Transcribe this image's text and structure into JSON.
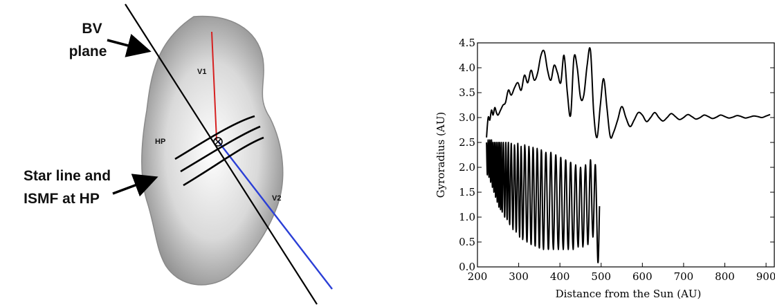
{
  "figure_left": {
    "callouts": {
      "bv_plane_line1": "BV",
      "bv_plane_line2": "plane",
      "star_line1": "Star line and",
      "star_line2": "ISMF at HP"
    },
    "labels": {
      "v1": "V1",
      "v2": "V2",
      "hp": "HP"
    },
    "colors": {
      "v1_vector": "#d62020",
      "v2_vector": "#2b3fd6",
      "bv_plane": "#000000",
      "heliopause_fill": "#bdbdbd"
    }
  },
  "chart_data": {
    "type": "line",
    "title": "",
    "xlabel": "Distance from the Sun (AU)",
    "ylabel": "Gyroradius (AU)",
    "xlim": [
      200,
      920
    ],
    "ylim": [
      0.0,
      4.5
    ],
    "xticks": [
      200,
      300,
      400,
      500,
      600,
      700,
      800,
      900
    ],
    "yticks": [
      0.0,
      0.5,
      1.0,
      1.5,
      2.0,
      2.5,
      3.0,
      3.5,
      4.0,
      4.5
    ],
    "xtick_labels": [
      "200",
      "300",
      "400",
      "500",
      "600",
      "700",
      "800",
      "900"
    ],
    "ytick_labels": [
      "0.0",
      "0.5",
      "1.0",
      "1.5",
      "2.0",
      "2.5",
      "3.0",
      "3.5",
      "4.0",
      "4.5"
    ],
    "grid": false,
    "series": [
      {
        "color": "#000000",
        "x": [
          222,
          226,
          230,
          234,
          238,
          242,
          246,
          250,
          256,
          262,
          268,
          275,
          282,
          290,
          298,
          306,
          314,
          322,
          330,
          338,
          346,
          354,
          362,
          370,
          378,
          386,
          394,
          402,
          410,
          418,
          426,
          434,
          442,
          450,
          458,
          466,
          474,
          482,
          490,
          498,
          506,
          514,
          522,
          530,
          540,
          550,
          560,
          570,
          580,
          590,
          600,
          610,
          620,
          630,
          640,
          650,
          660,
          670,
          680,
          690,
          700,
          710,
          720,
          730,
          740,
          750,
          760,
          770,
          780,
          790,
          800,
          810,
          820,
          830,
          840,
          850,
          860,
          870,
          880,
          890,
          900,
          910
        ],
        "y": [
          2.6,
          3.0,
          2.95,
          3.15,
          3.05,
          3.2,
          3.1,
          3.05,
          3.15,
          3.25,
          3.3,
          3.55,
          3.45,
          3.6,
          3.7,
          3.55,
          3.85,
          3.7,
          3.95,
          3.75,
          3.9,
          4.25,
          4.33,
          3.95,
          3.75,
          4.05,
          3.9,
          3.7,
          4.25,
          3.5,
          3.05,
          4.2,
          4.0,
          3.4,
          3.45,
          4.05,
          4.35,
          3.1,
          2.6,
          3.25,
          3.78,
          3.2,
          2.62,
          2.7,
          2.95,
          3.22,
          3.0,
          2.82,
          2.95,
          3.1,
          3.05,
          2.92,
          3.0,
          3.1,
          3.0,
          2.93,
          3.0,
          3.08,
          3.02,
          2.96,
          3.0,
          3.06,
          3.02,
          2.97,
          3.0,
          3.05,
          3.02,
          2.98,
          3.01,
          3.05,
          3.02,
          2.99,
          3.01,
          3.04,
          3.02,
          2.99,
          3.01,
          3.03,
          3.02,
          3.0,
          3.03,
          3.06
        ]
      },
      {
        "color": "#000000",
        "x": [
          222,
          224,
          226,
          228,
          230,
          232,
          234,
          236,
          238,
          240,
          242,
          244,
          246,
          248,
          250,
          252,
          254,
          256,
          258,
          260,
          263,
          266,
          269,
          272,
          275,
          278,
          282,
          286,
          290,
          294,
          298,
          302,
          306,
          310,
          315,
          320,
          325,
          330,
          335,
          340,
          345,
          350,
          355,
          360,
          366,
          372,
          378,
          384,
          390,
          396,
          402,
          408,
          414,
          420,
          426,
          432,
          438,
          444,
          450,
          456,
          462,
          468,
          474,
          480,
          486,
          492,
          496
        ],
        "y": [
          2.5,
          1.85,
          2.55,
          1.8,
          2.55,
          1.7,
          2.55,
          1.6,
          2.5,
          1.5,
          2.5,
          1.4,
          2.5,
          1.3,
          2.5,
          1.2,
          2.5,
          1.15,
          2.5,
          1.1,
          2.5,
          1.0,
          2.5,
          0.95,
          2.5,
          0.85,
          2.48,
          0.75,
          2.45,
          0.7,
          2.48,
          0.6,
          2.42,
          0.55,
          2.45,
          0.5,
          2.42,
          0.45,
          2.4,
          0.42,
          2.38,
          0.38,
          2.35,
          0.35,
          2.3,
          0.35,
          2.3,
          0.35,
          2.25,
          0.35,
          2.2,
          0.35,
          2.15,
          0.35,
          2.1,
          0.35,
          2.05,
          0.4,
          2.0,
          0.4,
          2.05,
          0.45,
          2.15,
          0.6,
          2.05,
          0.1,
          1.22
        ]
      }
    ]
  }
}
